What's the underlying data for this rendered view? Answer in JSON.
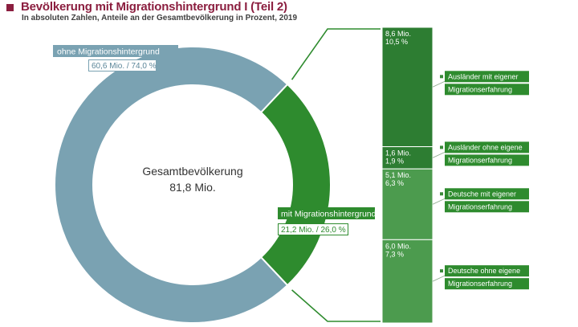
{
  "header": {
    "title": "Bevölkerung mit Migrationshintergrund I (Teil 2)",
    "subtitle": "In absoluten Zahlen, Anteile an der Gesamtbevölkerung in Prozent, 2019"
  },
  "colors": {
    "title": "#8b1e3f",
    "ohne": "#7aa2b2",
    "mit": "#2e8b2e",
    "bar_dark": "#2d7d32",
    "bar_light": "#4c9b4e",
    "bracket": "#2e8b2e"
  },
  "chart_data": [
    {
      "type": "pie",
      "donut": true,
      "center_label": {
        "line1": "Gesamtbevölkerung",
        "line2": "81,8 Mio."
      },
      "slices": [
        {
          "key": "ohne",
          "name": "ohne Migrationshintergrund",
          "value": 60.6,
          "percent": 74.0,
          "label": "60,6 Mio. / 74,0 %"
        },
        {
          "key": "mit",
          "name": "mit Migrationshintergrund",
          "value": 21.2,
          "percent": 26.0,
          "label": "21,2 Mio. / 26,0 %"
        }
      ]
    },
    {
      "type": "bar",
      "stacked": true,
      "orientation": "vertical",
      "total": 21.2,
      "segments": [
        {
          "name_line1": "Ausländer mit eigener",
          "name_line2": "Migrationserfahrung",
          "value": 8.6,
          "value_label": "8,6 Mio.",
          "percent_label": "10,5 %"
        },
        {
          "name_line1": "Ausländer ohne eigene",
          "name_line2": "Migrationserfahrung",
          "value": 1.6,
          "value_label": "1,6 Mio.",
          "percent_label": "1,9 %"
        },
        {
          "name_line1": "Deutsche mit eigener",
          "name_line2": "Migrationserfahrung",
          "value": 5.1,
          "value_label": "5,1 Mio.",
          "percent_label": "6,3 %"
        },
        {
          "name_line1": "Deutsche ohne eigene",
          "name_line2": "Migrationserfahrung",
          "value": 6.0,
          "value_label": "6,0 Mio.",
          "percent_label": "7,3 %"
        }
      ]
    }
  ]
}
